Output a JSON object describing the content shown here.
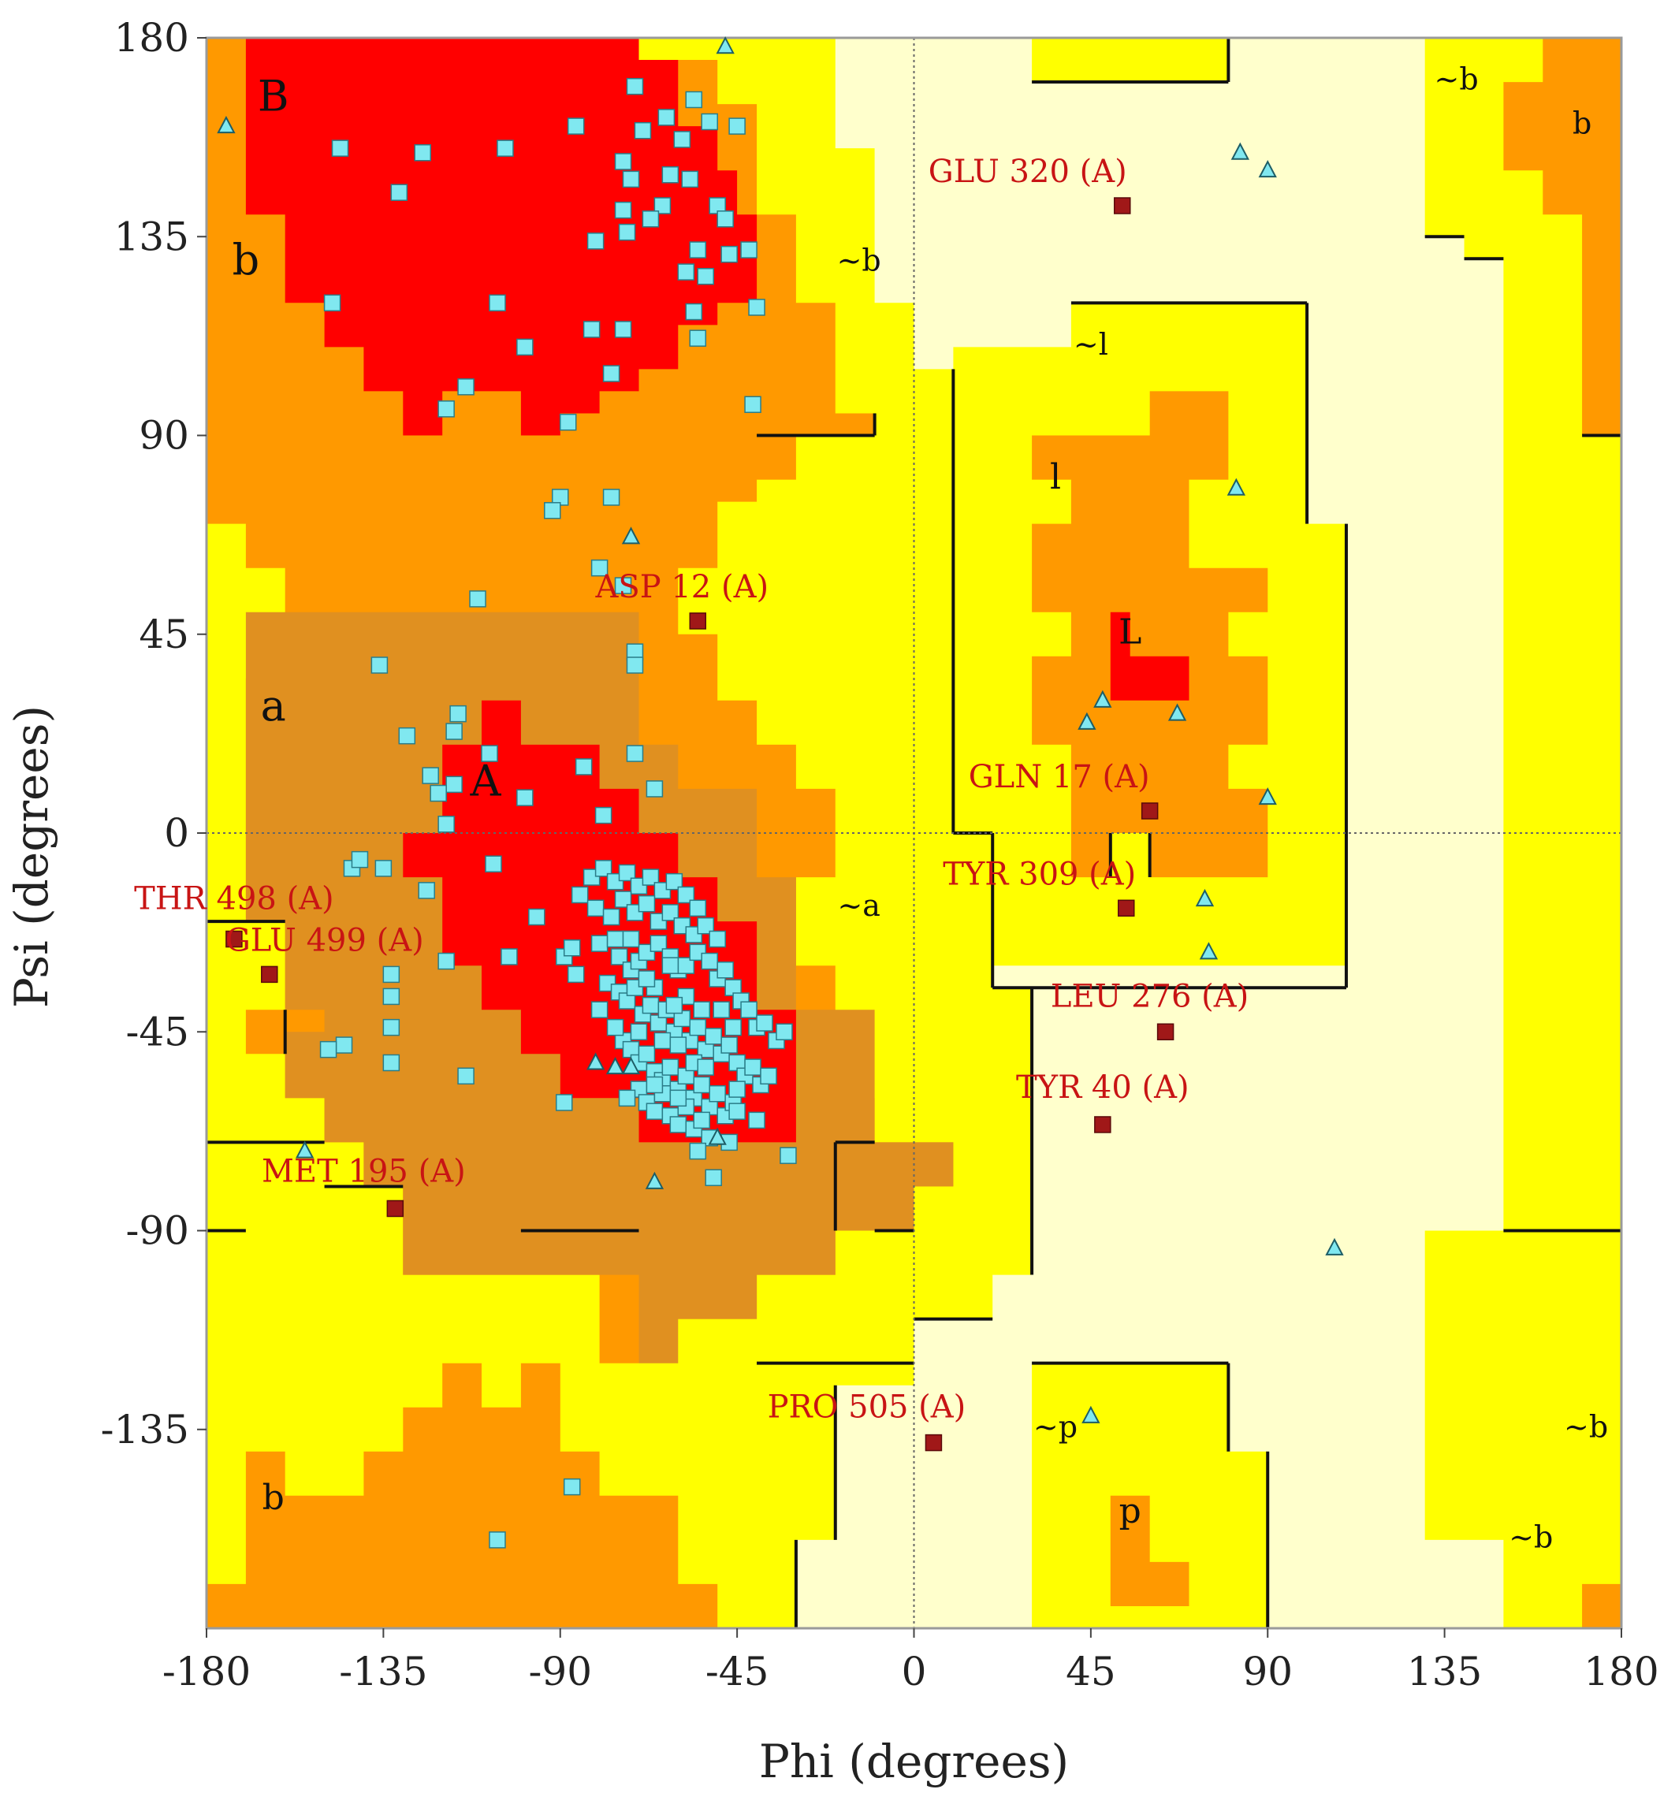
{
  "chart_data": {
    "type": "scatter",
    "title": "",
    "xlabel": "Phi (degrees)",
    "ylabel": "Psi (degrees)",
    "xlim": [
      -180,
      180
    ],
    "ylim": [
      -180,
      180
    ],
    "xticks": [
      "-180",
      "-135",
      "-90",
      "-45",
      "0",
      "45",
      "90",
      "135",
      "180"
    ],
    "yticks": [
      "180",
      "135",
      "90",
      "45",
      "0",
      "-45",
      "-90",
      "-135"
    ],
    "grid": false,
    "zero_lines": true,
    "colors": {
      "core": "#ff0000",
      "allowed": "#ff9900",
      "allowed_alpha": "#e09020",
      "generous": "#ffff00",
      "disallowed": "#ffffcc",
      "residue": "#80e8f0",
      "outlier": "#a01818",
      "outlier_label": "#c81414",
      "border": "#111111"
    },
    "region_labels": [
      {
        "text": "B",
        "phi": -163,
        "psi": 166,
        "size": "big"
      },
      {
        "text": "b",
        "phi": -170,
        "psi": 129,
        "size": "big"
      },
      {
        "text": "a",
        "phi": -163,
        "psi": 28,
        "size": "big"
      },
      {
        "text": "A",
        "phi": -109,
        "psi": 11,
        "size": "big"
      },
      {
        "text": "L",
        "phi": 55,
        "psi": 45,
        "size": "mid"
      },
      {
        "text": "l",
        "phi": 36,
        "psi": 80,
        "size": "mid"
      },
      {
        "text": "p",
        "phi": 55,
        "psi": -154,
        "size": "mid"
      },
      {
        "text": "b",
        "phi": -163,
        "psi": -151,
        "size": "mid"
      },
      {
        "text": "b",
        "phi": 170,
        "psi": 160,
        "size": "small"
      },
      {
        "text": "~b",
        "phi": -14,
        "psi": 129,
        "size": "small"
      },
      {
        "text": "~b",
        "phi": 138,
        "psi": 170,
        "size": "small"
      },
      {
        "text": "~b",
        "phi": 171,
        "psi": -135,
        "size": "small"
      },
      {
        "text": "~b",
        "phi": 157,
        "psi": -160,
        "size": "small"
      },
      {
        "text": "~l",
        "phi": 45,
        "psi": 110,
        "size": "small"
      },
      {
        "text": "~a",
        "phi": -14,
        "psi": -17,
        "size": "small"
      },
      {
        "text": "~p",
        "phi": 36,
        "psi": -135,
        "size": "small"
      }
    ],
    "series": [
      {
        "marker": "square",
        "points": [
          [
            -146,
            155
          ],
          [
            -125,
            154
          ],
          [
            -104,
            155
          ],
          [
            -131,
            145
          ],
          [
            -86,
            160
          ],
          [
            -71,
            169
          ],
          [
            -69,
            159
          ],
          [
            -63,
            162
          ],
          [
            -56,
            166
          ],
          [
            -52,
            161
          ],
          [
            -45,
            160
          ],
          [
            -59,
            157
          ],
          [
            -57,
            148
          ],
          [
            -62,
            149
          ],
          [
            -74,
            152
          ],
          [
            -72,
            148
          ],
          [
            -73,
            136
          ],
          [
            -64,
            142
          ],
          [
            -67,
            139
          ],
          [
            -74,
            141
          ],
          [
            -81,
            134
          ],
          [
            -50,
            142
          ],
          [
            -48,
            139
          ],
          [
            -47,
            131
          ],
          [
            -55,
            132
          ],
          [
            -58,
            127
          ],
          [
            -53,
            126
          ],
          [
            -42,
            132
          ],
          [
            -40,
            119
          ],
          [
            -56,
            118
          ],
          [
            -55,
            112
          ],
          [
            -74,
            114
          ],
          [
            -82,
            114
          ],
          [
            -99,
            110
          ],
          [
            -106,
            120
          ],
          [
            -114,
            101
          ],
          [
            -119,
            96
          ],
          [
            -77,
            104
          ],
          [
            -88,
            93
          ],
          [
            -41,
            97
          ],
          [
            -148,
            120
          ],
          [
            -90,
            76
          ],
          [
            -92,
            73
          ],
          [
            -77,
            76
          ],
          [
            -80,
            60
          ],
          [
            -74,
            56
          ],
          [
            -111,
            53
          ],
          [
            -71,
            41
          ],
          [
            -71,
            38
          ],
          [
            -136,
            38
          ],
          [
            -129,
            22
          ],
          [
            -116,
            27
          ],
          [
            -117,
            23
          ],
          [
            -117,
            11
          ],
          [
            -123,
            13
          ],
          [
            -121,
            9
          ],
          [
            -108,
            18
          ],
          [
            -99,
            8
          ],
          [
            -84,
            15
          ],
          [
            -71,
            18
          ],
          [
            -66,
            10
          ],
          [
            -79,
            4
          ],
          [
            -119,
            2
          ],
          [
            -107,
            -7
          ],
          [
            -135,
            -8
          ],
          [
            -143,
            -8
          ],
          [
            -141,
            -6
          ],
          [
            -124,
            -13
          ],
          [
            -96,
            -19
          ],
          [
            -103,
            -28
          ],
          [
            -89,
            -28
          ],
          [
            -86,
            -32
          ],
          [
            -119,
            -29
          ],
          [
            -133,
            -32
          ],
          [
            -133,
            -44
          ],
          [
            -133,
            -52
          ],
          [
            -145,
            -48
          ],
          [
            -149,
            -49
          ],
          [
            -114,
            -55
          ],
          [
            -89,
            -61
          ],
          [
            -51,
            -78
          ],
          [
            -32,
            -73
          ],
          [
            -106,
            -160
          ],
          [
            -87,
            -148
          ],
          [
            -133,
            -37
          ],
          [
            -87,
            -26
          ],
          [
            -80,
            -25
          ],
          [
            -76,
            -24
          ],
          [
            -75,
            -28
          ],
          [
            -72,
            -31
          ],
          [
            -70,
            -29
          ],
          [
            -68,
            -27
          ],
          [
            -65,
            -25
          ],
          [
            -62,
            -28
          ],
          [
            -60,
            -31
          ],
          [
            -58,
            -30
          ],
          [
            -55,
            -27
          ],
          [
            -52,
            -29
          ],
          [
            -50,
            -33
          ],
          [
            -48,
            -31
          ],
          [
            -46,
            -35
          ],
          [
            -44,
            -38
          ],
          [
            -42,
            -40
          ],
          [
            -40,
            -44
          ],
          [
            -38,
            -43
          ],
          [
            -35,
            -47
          ],
          [
            -33,
            -45
          ],
          [
            -78,
            -34
          ],
          [
            -75,
            -36
          ],
          [
            -73,
            -38
          ],
          [
            -71,
            -35
          ],
          [
            -69,
            -41
          ],
          [
            -67,
            -39
          ],
          [
            -65,
            -43
          ],
          [
            -63,
            -40
          ],
          [
            -61,
            -45
          ],
          [
            -59,
            -42
          ],
          [
            -57,
            -47
          ],
          [
            -55,
            -44
          ],
          [
            -53,
            -49
          ],
          [
            -51,
            -46
          ],
          [
            -49,
            -50
          ],
          [
            -47,
            -48
          ],
          [
            -45,
            -52
          ],
          [
            -43,
            -55
          ],
          [
            -41,
            -53
          ],
          [
            -39,
            -57
          ],
          [
            -37,
            -55
          ],
          [
            -74,
            -47
          ],
          [
            -72,
            -49
          ],
          [
            -70,
            -52
          ],
          [
            -68,
            -50
          ],
          [
            -66,
            -54
          ],
          [
            -64,
            -56
          ],
          [
            -62,
            -53
          ],
          [
            -60,
            -58
          ],
          [
            -58,
            -55
          ],
          [
            -56,
            -60
          ],
          [
            -54,
            -57
          ],
          [
            -52,
            -62
          ],
          [
            -50,
            -59
          ],
          [
            -48,
            -64
          ],
          [
            -46,
            -61
          ],
          [
            -70,
            -58
          ],
          [
            -68,
            -61
          ],
          [
            -66,
            -63
          ],
          [
            -64,
            -59
          ],
          [
            -62,
            -64
          ],
          [
            -60,
            -66
          ],
          [
            -58,
            -62
          ],
          [
            -56,
            -67
          ],
          [
            -54,
            -65
          ],
          [
            -52,
            -69
          ],
          [
            -82,
            -10
          ],
          [
            -79,
            -8
          ],
          [
            -76,
            -11
          ],
          [
            -73,
            -9
          ],
          [
            -70,
            -12
          ],
          [
            -67,
            -10
          ],
          [
            -64,
            -13
          ],
          [
            -61,
            -11
          ],
          [
            -58,
            -14
          ],
          [
            -55,
            -17
          ],
          [
            -85,
            -14
          ],
          [
            -81,
            -17
          ],
          [
            -77,
            -19
          ],
          [
            -74,
            -15
          ],
          [
            -71,
            -18
          ],
          [
            -68,
            -16
          ],
          [
            -65,
            -20
          ],
          [
            -62,
            -18
          ],
          [
            -59,
            -21
          ],
          [
            -56,
            -23
          ],
          [
            -53,
            -21
          ],
          [
            -50,
            -24
          ],
          [
            -73,
            -60
          ],
          [
            -60,
            -60
          ],
          [
            -45,
            -63
          ],
          [
            -40,
            -65
          ],
          [
            -55,
            -72
          ],
          [
            -72,
            -24
          ],
          [
            -66,
            -35
          ],
          [
            -47,
            -70
          ],
          [
            -80,
            -40
          ],
          [
            -58,
            -37
          ],
          [
            -64,
            -47
          ],
          [
            -56,
            -52
          ],
          [
            -49,
            -40
          ],
          [
            -70,
            -45
          ],
          [
            -62,
            -30
          ],
          [
            -54,
            -40
          ],
          [
            -66,
            -57
          ],
          [
            -53,
            -53
          ],
          [
            -60,
            -48
          ],
          [
            -46,
            -44
          ],
          [
            -68,
            -33
          ],
          [
            -76,
            -44
          ],
          [
            -45,
            -58
          ],
          [
            -61,
            -39
          ]
        ]
      },
      {
        "marker": "triangle",
        "points": [
          [
            -175,
            160
          ],
          [
            -48,
            178
          ],
          [
            -72,
            67
          ],
          [
            -66,
            -79
          ],
          [
            -81,
            -52
          ],
          [
            -72,
            -53
          ],
          [
            -50,
            -69
          ],
          [
            -76,
            -53
          ],
          [
            -155,
            -72
          ],
          [
            48,
            30
          ],
          [
            44,
            25
          ],
          [
            67,
            27
          ],
          [
            83,
            154
          ],
          [
            90,
            150
          ],
          [
            82,
            78
          ],
          [
            90,
            8
          ],
          [
            74,
            -15
          ],
          [
            75,
            -27
          ],
          [
            107,
            -94
          ],
          [
            45,
            -132
          ]
        ]
      }
    ],
    "outliers": [
      {
        "label": "GLU 320 (A)",
        "phi": 53,
        "psi": 142
      },
      {
        "label": "ASP 12 (A)",
        "phi": -55,
        "psi": 48
      },
      {
        "label": "GLN 17 (A)",
        "phi": 60,
        "psi": 5
      },
      {
        "label": "TYR 309 (A)",
        "phi": 54,
        "psi": -17
      },
      {
        "label": "THR 498 (A)",
        "phi": -173,
        "psi": -24
      },
      {
        "label": "GLU 499 (A)",
        "phi": -164,
        "psi": -32
      },
      {
        "label": "LEU 276 (A)",
        "phi": 64,
        "psi": -45
      },
      {
        "label": "TYR 40 (A)",
        "phi": 48,
        "psi": -66
      },
      {
        "label": "MET 195 (A)",
        "phi": -132,
        "psi": -85
      },
      {
        "label": "PRO 505 (A)",
        "phi": 5,
        "psi": -138
      }
    ]
  }
}
